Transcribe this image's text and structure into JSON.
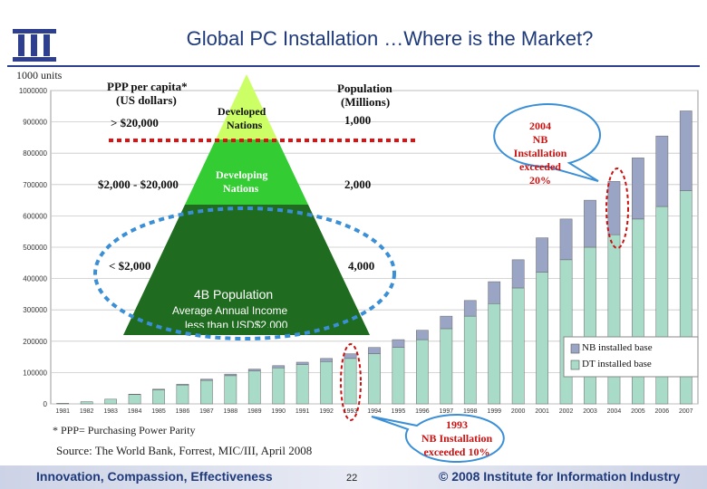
{
  "header": {
    "title": "Global PC Installation …Where is the Market?",
    "units": "1000 units"
  },
  "pyramid": {
    "col_ppp_header_1": "PPP per capita*",
    "col_ppp_header_2": "(US dollars)",
    "col_pop_header_1": "Population",
    "col_pop_header_2": "(Millions)",
    "tiers": [
      {
        "ppp": "> $20,000",
        "label_1": "Developed",
        "label_2": "Nations",
        "population": "1,000"
      },
      {
        "ppp": "$2,000 - $20,000",
        "label_1": "Developing",
        "label_2": "Nations",
        "population": "2,000"
      },
      {
        "ppp": "< $2,000",
        "label_1": "4B Population",
        "label_2": "Average Annual Income",
        "label_3": "less than USD$2,000",
        "population": "4,000"
      }
    ],
    "colors": {
      "top": "#ccff66",
      "middle": "#33cc33",
      "bottom": "#1f6b1f"
    }
  },
  "callouts": {
    "c2004": {
      "line_1": "2004",
      "line_2": "NB",
      "line_3": "Installation",
      "line_4": "exceeded 20%"
    },
    "c1993": {
      "line_1": "1993",
      "line_2": "NB Installation",
      "line_3": "exceeded 10%"
    }
  },
  "legend": {
    "nb": "NB installed base",
    "dt": "DT installed base"
  },
  "notes": {
    "ppp": "* PPP= Purchasing Power Parity",
    "source": "Source: The World Bank, Forrest, MIC/III, April 2008",
    "page": "22"
  },
  "footer": {
    "left": "Innovation, Compassion, Effectiveness",
    "right": "© 2008 Institute for Information Industry"
  },
  "chart_data": {
    "type": "bar",
    "stacked": true,
    "categories": [
      "1981",
      "1982",
      "1983",
      "1984",
      "1985",
      "1986",
      "1987",
      "1988",
      "1989",
      "1990",
      "1991",
      "1992",
      "1993",
      "1994",
      "1995",
      "1996",
      "1997",
      "1998",
      "1999",
      "2000",
      "2001",
      "2002",
      "2003",
      "2004",
      "2005",
      "2006",
      "2007"
    ],
    "series": [
      {
        "name": "DT installed base",
        "color": "#a8dcc8",
        "values": [
          2000,
          7000,
          15000,
          30000,
          45000,
          60000,
          75000,
          90000,
          105000,
          115000,
          125000,
          135000,
          145000,
          160000,
          180000,
          205000,
          240000,
          280000,
          320000,
          370000,
          420000,
          460000,
          500000,
          540000,
          590000,
          630000,
          680000
        ]
      },
      {
        "name": "NB installed base",
        "color": "#9aa4c4",
        "values": [
          0,
          0,
          0,
          1000,
          2000,
          3000,
          4000,
          5000,
          6000,
          7000,
          8000,
          10000,
          15000,
          20000,
          25000,
          30000,
          40000,
          50000,
          70000,
          90000,
          110000,
          130000,
          150000,
          170000,
          195000,
          225000,
          255000
        ]
      }
    ],
    "xlabel": "",
    "ylabel": "",
    "ylim": [
      0,
      1000000
    ],
    "yticks": [
      0,
      100000,
      200000,
      300000,
      400000,
      500000,
      600000,
      700000,
      800000,
      900000,
      1000000
    ],
    "grid": true,
    "legend_position": "bottom-right"
  }
}
